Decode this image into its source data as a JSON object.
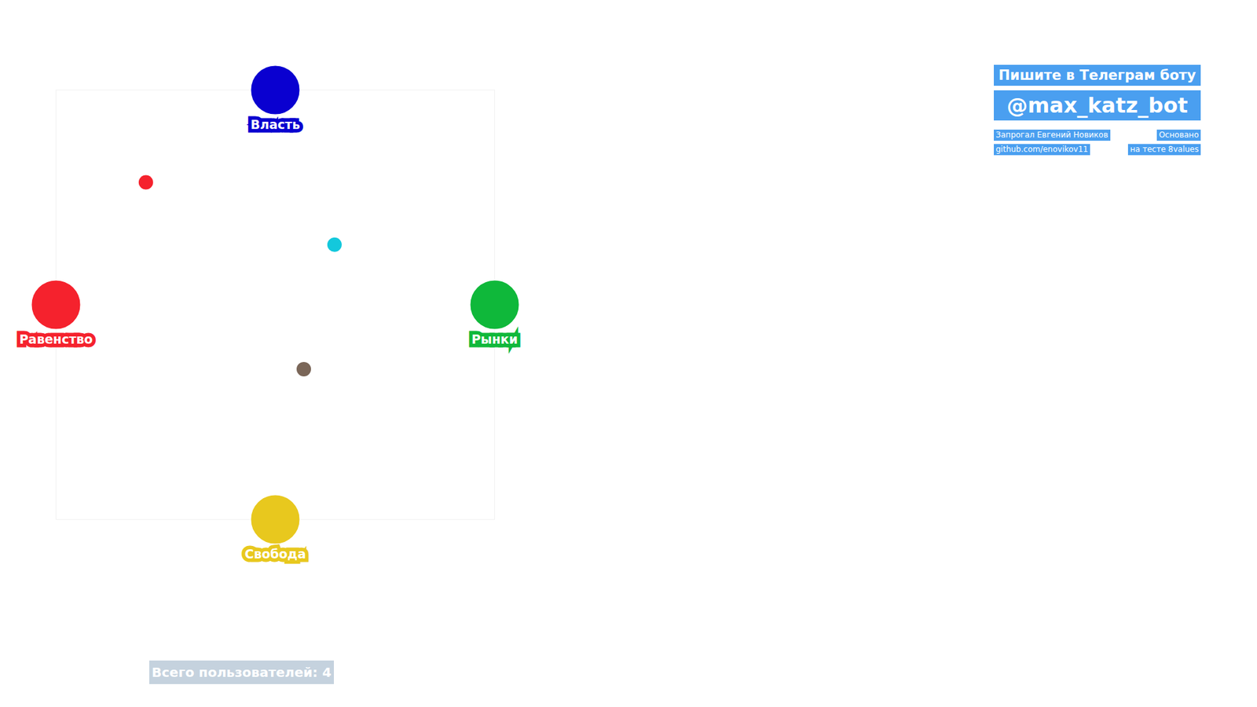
{
  "chart_data": {
    "type": "scatter",
    "tick_labels": false,
    "xlim": [
      -1,
      1
    ],
    "ylim": [
      -1,
      1
    ],
    "xticks": [
      -1,
      0,
      1
    ],
    "yticks": [
      -1,
      0,
      1
    ],
    "poles": [
      {
        "label": "Власть",
        "x": 0,
        "y": 1,
        "color": "#0a00d0"
      },
      {
        "label": "Равенство",
        "x": -1,
        "y": 0,
        "color": "#f5222d"
      },
      {
        "label": "Рынки",
        "x": 1,
        "y": 0,
        "color": "#0fb83a"
      },
      {
        "label": "Свобода",
        "x": 0,
        "y": -1,
        "color": "#e8c81e"
      }
    ],
    "x": [
      -0.59,
      0.27,
      0.13
    ],
    "values": [
      0.57,
      0.28,
      -0.3
    ],
    "colors": [
      "#f5222d",
      "#13c8dc",
      "#7a6658"
    ],
    "banner": {
      "title": "Пишите в Телеграм боту",
      "handle": "@max_katz_bot",
      "author": "Запрогал Евгений Новиков",
      "repo": "github.com/enovikov11",
      "based_on": "Основано",
      "source": "на тесте 8values"
    },
    "footer": "Всего пользователей: 4"
  }
}
